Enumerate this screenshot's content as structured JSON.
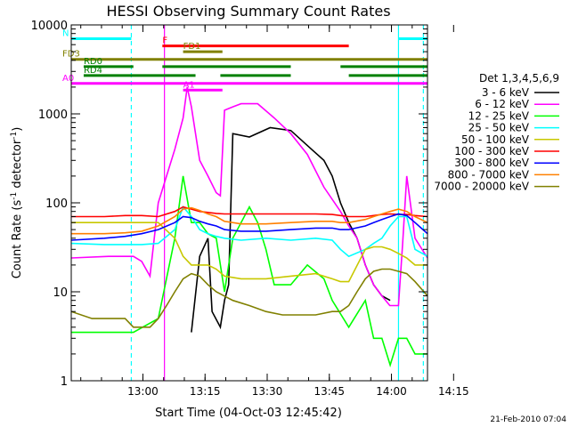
{
  "chart_data": {
    "type": "line",
    "title": "HESSI Observing Summary Count Rates",
    "xlabel": "Start Time (04-Oct-03 12:45:42)",
    "ylabel_main": "Count Rate (s",
    "ylabel_sup1": "-1",
    "ylabel_mid": " detector",
    "ylabel_sup2": "-1",
    "ylabel_end": ")",
    "timestamp": "21-Feb-2010 07:04",
    "yscale": "log",
    "ylim": [
      1,
      10000
    ],
    "xlim_min": [
      -3,
      83
    ],
    "x_unit": "minutes after 12:45:42",
    "x_ticks": [
      {
        "label": "13:00",
        "m": 14.3
      },
      {
        "label": "13:15",
        "m": 29.3
      },
      {
        "label": "13:30",
        "m": 44.3
      },
      {
        "label": "13:45",
        "m": 59.3
      },
      {
        "label": "14:00",
        "m": 74.3
      },
      {
        "label": "14:15",
        "m": 89.3
      }
    ],
    "y_ticks": [
      {
        "label": "1",
        "v": 1
      },
      {
        "label": "10",
        "v": 10
      },
      {
        "label": "100",
        "v": 100
      },
      {
        "label": "1000",
        "v": 1000
      },
      {
        "label": "10000",
        "v": 10000
      }
    ],
    "legend": {
      "placement": "right",
      "title": "Det 1,3,4,5,6,9",
      "entries": [
        {
          "label": "3 - 6 keV",
          "color": "#000000"
        },
        {
          "label": "6 - 12 keV",
          "color": "#ff00ff"
        },
        {
          "label": "12 - 25 keV",
          "color": "#00ff00"
        },
        {
          "label": "25 - 50 keV",
          "color": "#00ffff"
        },
        {
          "label": "50 - 100 keV",
          "color": "#c8c800"
        },
        {
          "label": "100 - 300 keV",
          "color": "#ff0000"
        },
        {
          "label": "300 - 800 keV",
          "color": "#0000ff"
        },
        {
          "label": "800 - 7000 keV",
          "color": "#ff8000"
        },
        {
          "label": "7000 - 20000 keV",
          "color": "#808000"
        }
      ]
    },
    "flags": [
      {
        "label": "N",
        "color": "#00ffff",
        "y": 7000,
        "segments": [
          [
            -3,
            11.5
          ],
          [
            76,
            83
          ]
        ]
      },
      {
        "label": "F",
        "color": "#ff0000",
        "y": 5800,
        "segments": [
          [
            19,
            64
          ]
        ]
      },
      {
        "label": "FD1",
        "color": "#808000",
        "y": 5000,
        "segments": [
          [
            24,
            33.5
          ]
        ]
      },
      {
        "label": "FD3",
        "color": "#808000",
        "y": 4100,
        "segments": [
          [
            -3,
            83
          ]
        ]
      },
      {
        "label": "RD0",
        "color": "#008000",
        "y": 3400,
        "segments": [
          [
            0,
            12
          ],
          [
            19,
            50
          ],
          [
            62,
            83
          ]
        ]
      },
      {
        "label": "RD4",
        "color": "#008000",
        "y": 2700,
        "segments": [
          [
            0,
            27
          ],
          [
            33,
            50
          ],
          [
            64,
            83
          ]
        ]
      },
      {
        "label": "A0",
        "color": "#ff00ff",
        "y": 2200,
        "segments": [
          [
            -3,
            83
          ]
        ]
      },
      {
        "label": "A1",
        "color": "#ff00ff",
        "y": 1850,
        "segments": [
          [
            24,
            33.5
          ]
        ]
      }
    ],
    "vlines": [
      {
        "m": 11.5,
        "color": "#00ffff",
        "style": "dashed"
      },
      {
        "m": 76.0,
        "color": "#00ffff",
        "style": "solid"
      },
      {
        "m": 82.0,
        "color": "#00ffff",
        "style": "dashed"
      },
      {
        "m": 19.5,
        "color": "#ff00ff",
        "style": "solid"
      }
    ],
    "series": [
      {
        "name": "3 - 6 keV",
        "color": "#000000",
        "m": [
          26,
          28,
          30,
          31,
          33,
          34,
          35,
          36,
          40,
          45,
          50,
          55,
          58,
          60,
          62,
          64,
          66,
          68,
          70,
          72,
          74
        ],
        "v": [
          3.5,
          25,
          40,
          6,
          4,
          8,
          12,
          600,
          550,
          700,
          650,
          400,
          300,
          200,
          100,
          60,
          40,
          20,
          12,
          9,
          8
        ]
      },
      {
        "name": "6 - 12 keV",
        "color": "#ff00ff",
        "m": [
          -3,
          6,
          8,
          10,
          12,
          14,
          16,
          18,
          20,
          22,
          24,
          25,
          26,
          28,
          30,
          32,
          33,
          34,
          36,
          38,
          42,
          46,
          50,
          54,
          58,
          62,
          64,
          66,
          68,
          70,
          72,
          73.9,
          74,
          76,
          77,
          78,
          80,
          83
        ],
        "v": [
          24,
          25,
          25,
          25,
          25,
          22,
          15,
          100,
          200,
          400,
          900,
          2000,
          1200,
          300,
          200,
          130,
          120,
          1100,
          1200,
          1300,
          1300,
          900,
          600,
          350,
          150,
          80,
          55,
          40,
          20,
          12,
          9,
          7,
          7,
          7,
          35,
          200,
          40,
          24
        ]
      },
      {
        "name": "12 - 25 keV",
        "color": "#00ff00",
        "m": [
          -3,
          10,
          11,
          12,
          18,
          22,
          24,
          26,
          28,
          30,
          32,
          34,
          36,
          38,
          40,
          42,
          44,
          46,
          50,
          54,
          58,
          60,
          64,
          68,
          70,
          72,
          74,
          76,
          78,
          80,
          83
        ],
        "v": [
          3.5,
          3.5,
          3.5,
          3.5,
          5,
          40,
          200,
          60,
          60,
          45,
          40,
          10,
          40,
          60,
          90,
          60,
          30,
          12,
          12,
          20,
          14,
          8,
          4,
          8,
          3,
          3,
          1.5,
          3,
          3,
          2,
          2
        ]
      },
      {
        "name": "25 - 50 keV",
        "color": "#00ffff",
        "m": [
          -3,
          5,
          10,
          14,
          18,
          22,
          24,
          26,
          28,
          30,
          32,
          34,
          38,
          44,
          50,
          56,
          60,
          62,
          64,
          68,
          70,
          72,
          74,
          76,
          78,
          80,
          83
        ],
        "v": [
          35,
          34,
          34,
          34,
          35,
          50,
          90,
          70,
          50,
          45,
          42,
          40,
          38,
          40,
          38,
          40,
          38,
          30,
          25,
          30,
          35,
          40,
          55,
          70,
          70,
          30,
          25
        ]
      },
      {
        "name": "50 - 100 keV",
        "color": "#c8c800",
        "m": [
          -3,
          5,
          10,
          14,
          18,
          22,
          24,
          26,
          28,
          30,
          32,
          34,
          38,
          44,
          50,
          56,
          60,
          62,
          64,
          68,
          70,
          72,
          74,
          76,
          78,
          80,
          83
        ],
        "v": [
          60,
          60,
          60,
          60,
          60,
          40,
          25,
          20,
          20,
          20,
          18,
          15,
          14,
          14,
          15,
          16,
          14,
          13,
          13,
          30,
          32,
          32,
          30,
          27,
          24,
          20,
          20
        ]
      },
      {
        "name": "100 - 300 keV",
        "color": "#ff0000",
        "m": [
          -3,
          5,
          10,
          14,
          18,
          22,
          24,
          26,
          28,
          30,
          32,
          34,
          38,
          44,
          50,
          56,
          60,
          62,
          64,
          68,
          70,
          72,
          74,
          76,
          78,
          80,
          83
        ],
        "v": [
          70,
          70,
          72,
          72,
          70,
          80,
          90,
          85,
          80,
          78,
          76,
          75,
          75,
          75,
          75,
          75,
          74,
          72,
          70,
          70,
          72,
          74,
          75,
          74,
          74,
          72,
          70
        ]
      },
      {
        "name": "300 - 800 keV",
        "color": "#0000ff",
        "m": [
          -3,
          5,
          10,
          14,
          18,
          22,
          24,
          26,
          28,
          30,
          32,
          34,
          38,
          44,
          50,
          56,
          60,
          62,
          64,
          68,
          70,
          72,
          74,
          76,
          78,
          80,
          83
        ],
        "v": [
          38,
          40,
          42,
          45,
          50,
          60,
          70,
          68,
          62,
          58,
          55,
          50,
          48,
          48,
          50,
          52,
          52,
          50,
          50,
          55,
          60,
          65,
          70,
          75,
          72,
          60,
          45
        ]
      },
      {
        "name": "800 - 7000 keV",
        "color": "#ff8000",
        "m": [
          -3,
          5,
          10,
          14,
          18,
          22,
          24,
          26,
          28,
          30,
          32,
          34,
          38,
          44,
          50,
          56,
          60,
          62,
          64,
          68,
          70,
          72,
          74,
          76,
          78,
          80,
          83
        ],
        "v": [
          45,
          45,
          46,
          48,
          55,
          70,
          85,
          88,
          82,
          75,
          70,
          62,
          58,
          58,
          60,
          62,
          62,
          60,
          60,
          65,
          70,
          75,
          80,
          85,
          80,
          70,
          60
        ]
      },
      {
        "name": "7000 - 20000 keV",
        "color": "#808000",
        "m": [
          -3,
          2,
          6,
          10,
          12,
          14,
          16,
          18,
          20,
          22,
          24,
          26,
          28,
          30,
          32,
          36,
          40,
          44,
          48,
          52,
          56,
          60,
          62,
          64,
          66,
          68,
          70,
          72,
          74,
          76,
          78,
          80,
          83
        ],
        "v": [
          6,
          5,
          5,
          5,
          4,
          4,
          4,
          5,
          7,
          10,
          14,
          16,
          15,
          12,
          10,
          8,
          7,
          6,
          5.5,
          5.5,
          5.5,
          6,
          6,
          7,
          10,
          14,
          17,
          18,
          18,
          17,
          16,
          13,
          9
        ]
      }
    ]
  }
}
